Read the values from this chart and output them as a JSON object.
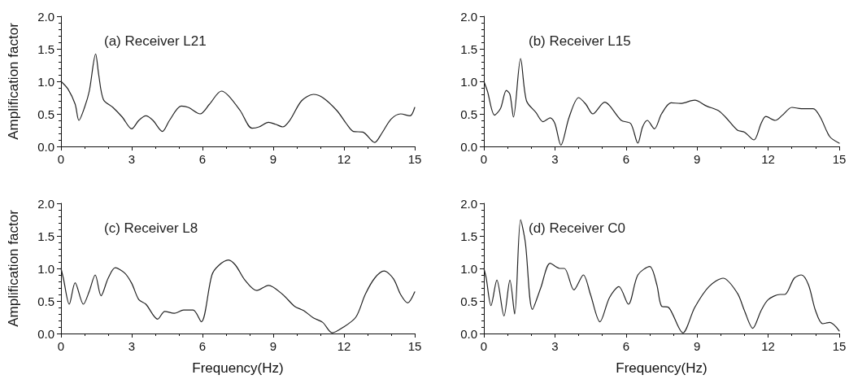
{
  "chart_data": [
    {
      "type": "line",
      "annotations": [
        "(a) Receiver L21"
      ],
      "ylabel": "Amplification factor",
      "xlim": [
        0,
        15
      ],
      "xticks": [
        0,
        3,
        6,
        9,
        12,
        15
      ],
      "ylim": [
        0,
        2
      ],
      "yticks": [
        {
          "value": 0,
          "label": "0.0"
        },
        {
          "value": 0.5,
          "label": "0.5"
        },
        {
          "value": 1,
          "label": "1.0"
        },
        {
          "value": 1.5,
          "label": "1.5"
        },
        {
          "value": 2,
          "label": "2.0"
        }
      ],
      "grid": false,
      "marker": "none",
      "line_style": "solid",
      "series": [
        {
          "color": "#222222",
          "x": [
            0,
            0.3,
            0.6,
            0.76,
            1.0,
            1.2,
            1.47,
            1.6,
            1.8,
            2.2,
            2.6,
            3.0,
            3.3,
            3.6,
            3.9,
            4.3,
            4.6,
            5.1,
            5.4,
            5.9,
            6.3,
            6.8,
            7.1,
            7.6,
            8.1,
            8.4,
            8.8,
            9.1,
            9.4,
            9.7,
            10.2,
            10.7,
            11.1,
            11.7,
            12.1,
            12.4,
            12.8,
            13.3,
            13.6,
            14.0,
            14.4,
            14.8,
            15
          ],
          "values": [
            1.0,
            0.88,
            0.65,
            0.4,
            0.6,
            0.85,
            1.42,
            1.1,
            0.72,
            0.6,
            0.45,
            0.27,
            0.4,
            0.47,
            0.4,
            0.23,
            0.4,
            0.62,
            0.6,
            0.5,
            0.65,
            0.85,
            0.78,
            0.55,
            0.28,
            0.3,
            0.37,
            0.34,
            0.3,
            0.4,
            0.7,
            0.8,
            0.75,
            0.55,
            0.35,
            0.23,
            0.22,
            0.06,
            0.2,
            0.42,
            0.5,
            0.47,
            0.6
          ]
        }
      ]
    },
    {
      "type": "line",
      "annotations": [
        "(b) Receiver L15"
      ],
      "xlim": [
        0,
        15
      ],
      "xticks": [
        0,
        3,
        6,
        9,
        12,
        15
      ],
      "ylim": [
        0,
        2
      ],
      "yticks": [
        {
          "value": 0,
          "label": "0.0"
        },
        {
          "value": 0.5,
          "label": "0.5"
        },
        {
          "value": 1,
          "label": "1.0"
        },
        {
          "value": 1.5,
          "label": "1.5"
        },
        {
          "value": 2,
          "label": "2.0"
        }
      ],
      "grid": false,
      "marker": "none",
      "line_style": "solid",
      "series": [
        {
          "color": "#222222",
          "x": [
            0,
            0.15,
            0.45,
            0.7,
            0.95,
            1.1,
            1.25,
            1.55,
            1.8,
            2.2,
            2.5,
            2.8,
            3.0,
            3.25,
            3.6,
            4.0,
            4.3,
            4.6,
            5.1,
            5.3,
            5.8,
            6.2,
            6.5,
            6.7,
            6.9,
            7.2,
            7.5,
            7.9,
            8.3,
            8.9,
            9.4,
            9.9,
            10.2,
            10.7,
            11.0,
            11.4,
            11.7,
            11.9,
            12.3,
            12.6,
            13.0,
            13.4,
            13.9,
            14.2,
            14.6,
            15
          ],
          "values": [
            1.0,
            0.85,
            0.48,
            0.58,
            0.86,
            0.8,
            0.45,
            1.35,
            0.7,
            0.52,
            0.38,
            0.44,
            0.35,
            0.02,
            0.45,
            0.75,
            0.65,
            0.5,
            0.68,
            0.63,
            0.4,
            0.35,
            0.05,
            0.3,
            0.4,
            0.27,
            0.5,
            0.67,
            0.66,
            0.71,
            0.62,
            0.55,
            0.45,
            0.25,
            0.22,
            0.1,
            0.35,
            0.46,
            0.4,
            0.48,
            0.6,
            0.58,
            0.58,
            0.45,
            0.15,
            0.05
          ]
        }
      ]
    },
    {
      "type": "line",
      "annotations": [
        "(c) Receiver L8"
      ],
      "xlabel": "Frequency(Hz)",
      "ylabel": "Amplification factor",
      "xlim": [
        0,
        15
      ],
      "xticks": [
        0,
        3,
        6,
        9,
        12,
        15
      ],
      "ylim": [
        0,
        2
      ],
      "yticks": [
        {
          "value": 0,
          "label": "0.0"
        },
        {
          "value": 0.5,
          "label": "0.5"
        },
        {
          "value": 1,
          "label": "1.0"
        },
        {
          "value": 1.5,
          "label": "1.5"
        },
        {
          "value": 2,
          "label": "2.0"
        }
      ],
      "grid": false,
      "marker": "none",
      "line_style": "solid",
      "series": [
        {
          "color": "#222222",
          "x": [
            0,
            0.1,
            0.35,
            0.6,
            0.95,
            1.2,
            1.45,
            1.7,
            2.0,
            2.3,
            2.7,
            3.0,
            3.3,
            3.6,
            4.1,
            4.4,
            4.8,
            5.2,
            5.6,
            5.95,
            6.4,
            6.7,
            7.1,
            7.4,
            7.8,
            8.3,
            8.8,
            9.4,
            9.9,
            10.3,
            10.7,
            11.1,
            11.5,
            11.9,
            12.5,
            12.9,
            13.3,
            13.7,
            14.1,
            14.4,
            14.7,
            15
          ],
          "values": [
            1.0,
            0.85,
            0.45,
            0.78,
            0.45,
            0.65,
            0.9,
            0.58,
            0.85,
            1.01,
            0.93,
            0.77,
            0.52,
            0.45,
            0.22,
            0.34,
            0.31,
            0.36,
            0.36,
            0.18,
            0.9,
            1.05,
            1.13,
            1.05,
            0.82,
            0.66,
            0.74,
            0.6,
            0.42,
            0.35,
            0.24,
            0.17,
            0.01,
            0.08,
            0.25,
            0.6,
            0.85,
            0.96,
            0.84,
            0.6,
            0.47,
            0.64
          ]
        }
      ]
    },
    {
      "type": "line",
      "annotations": [
        "(d) Receiver C0"
      ],
      "xlabel": "Frequency(Hz)",
      "xlim": [
        0,
        15
      ],
      "xticks": [
        0,
        3,
        6,
        9,
        12,
        15
      ],
      "ylim": [
        0,
        2
      ],
      "yticks": [
        {
          "value": 0,
          "label": "0.0"
        },
        {
          "value": 0.5,
          "label": "0.5"
        },
        {
          "value": 1,
          "label": "1.0"
        },
        {
          "value": 1.5,
          "label": "1.5"
        },
        {
          "value": 2,
          "label": "2.0"
        }
      ],
      "grid": false,
      "marker": "none",
      "line_style": "solid",
      "series": [
        {
          "color": "#222222",
          "x": [
            0,
            0.1,
            0.3,
            0.55,
            0.85,
            1.1,
            1.3,
            1.55,
            1.75,
            2.05,
            2.4,
            2.8,
            3.2,
            3.4,
            3.8,
            4.2,
            4.5,
            4.9,
            5.3,
            5.7,
            6.1,
            6.5,
            7.0,
            7.3,
            7.5,
            7.8,
            8.4,
            8.9,
            9.5,
            10.1,
            10.7,
            11.0,
            11.35,
            11.7,
            12.0,
            12.5,
            12.7,
            13.1,
            13.4,
            13.7,
            14.0,
            14.3,
            14.6,
            15
          ],
          "values": [
            1.0,
            0.85,
            0.43,
            0.82,
            0.27,
            0.82,
            0.3,
            1.75,
            1.4,
            0.37,
            0.7,
            1.08,
            1.0,
            1.0,
            0.67,
            0.9,
            0.6,
            0.18,
            0.55,
            0.72,
            0.45,
            0.9,
            1.03,
            0.75,
            0.42,
            0.4,
            0.01,
            0.4,
            0.72,
            0.85,
            0.62,
            0.35,
            0.08,
            0.35,
            0.52,
            0.6,
            0.6,
            0.85,
            0.9,
            0.75,
            0.35,
            0.15,
            0.17,
            0.04
          ]
        }
      ]
    }
  ]
}
